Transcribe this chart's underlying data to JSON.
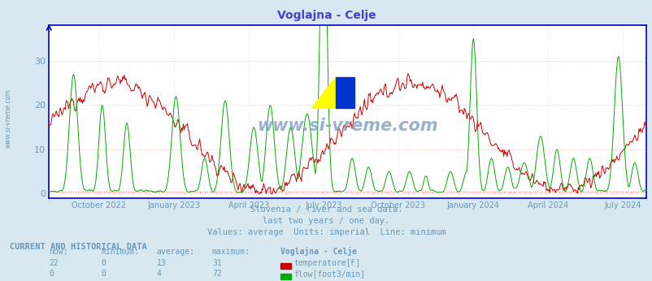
{
  "title": "Voglajna - Celje",
  "title_color": "#4444cc",
  "bg_color": "#d8e8f0",
  "plot_bg_color": "#ffffff",
  "grid_color_h": "#ffaaaa",
  "grid_color_v": "#ddddee",
  "axis_color": "#0000cc",
  "text_color": "#6699bb",
  "temp_color": "#cc0000",
  "flow_color": "#00aa00",
  "min_line_color": "#ff6666",
  "watermark_text": "www.si-vreme.com",
  "subtitle1": "Slovenia / river and sea data.",
  "subtitle2": "last two years / one day.",
  "subtitle3": "Values: average  Units: imperial  Line: minimum",
  "table_header": "CURRENT AND HISTORICAL DATA",
  "col_now": "now:",
  "col_min": "minimum:",
  "col_avg": "average:",
  "col_max": "maximum:",
  "station_label": "Voglajna - Celje",
  "temp_now": "22",
  "temp_min": "0",
  "temp_avg": "13",
  "temp_max": "31",
  "temp_label": "temperature[F]",
  "flow_now": "0",
  "flow_min": "0",
  "flow_avg": "4",
  "flow_max": "72",
  "flow_label": "flow[foot3/min]",
  "xticklabels": [
    "October 2022",
    "January 2023",
    "April 2023",
    "July 2023",
    "October 2023",
    "January 2024",
    "April 2024",
    "July 2024"
  ],
  "xtick_positions": [
    61,
    153,
    244,
    335,
    426,
    518,
    609,
    700
  ],
  "yticks": [
    0,
    10,
    20,
    30
  ],
  "ymax": 38,
  "ymin": -1,
  "n_points": 730
}
